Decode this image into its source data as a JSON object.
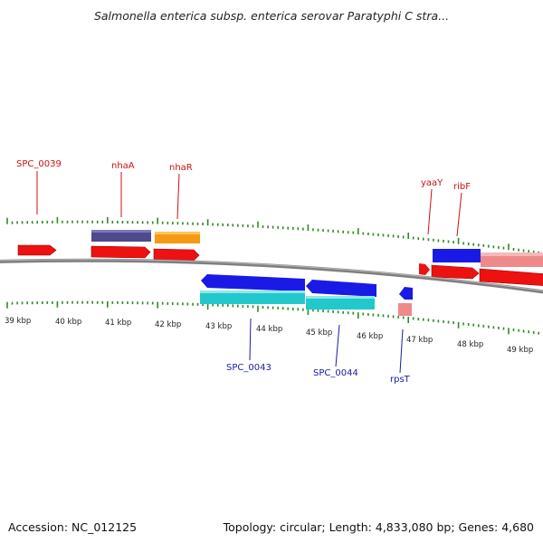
{
  "title": "Salmonella enterica subsp. enterica serovar Paratyphi C stra...",
  "footer": {
    "accession": "Accession: NC_012125",
    "summary": "Topology: circular; Length: 4,833,080 bp; Genes: 4,680"
  },
  "colors": {
    "backbone": "#7f7f7f",
    "tick": "#2e8b22",
    "top_label": "#cc1111",
    "bottom_label": "#1a1aa8",
    "forward_gene": "#ee1111",
    "nhaA": "#4f4a8c",
    "nhaR": "#f39a12",
    "reverse_gene": "#1a1ae6",
    "cyan_gene": "#22c8cc",
    "pink_gene": "#ee8a8a"
  },
  "scale_labels": [
    "39 kbp",
    "40 kbp",
    "41 kbp",
    "42 kbp",
    "43 kbp",
    "44 kbp",
    "45 kbp",
    "46 kbp",
    "47 kbp",
    "48 kbp",
    "49 kbp"
  ],
  "genes": [
    {
      "name": "SPC_0039",
      "label": "SPC_0039",
      "side": "top"
    },
    {
      "name": "nhaA",
      "label": "nhaA",
      "side": "top"
    },
    {
      "name": "nhaR",
      "label": "nhaR",
      "side": "top"
    },
    {
      "name": "yaaY",
      "label": "yaaY",
      "side": "top"
    },
    {
      "name": "ribF",
      "label": "ribF",
      "side": "top"
    },
    {
      "name": "SPC_0043",
      "label": "SPC_0043",
      "side": "bottom"
    },
    {
      "name": "SPC_0044",
      "label": "SPC_0044",
      "side": "bottom"
    },
    {
      "name": "rpsT",
      "label": "rpsT",
      "side": "bottom"
    }
  ]
}
